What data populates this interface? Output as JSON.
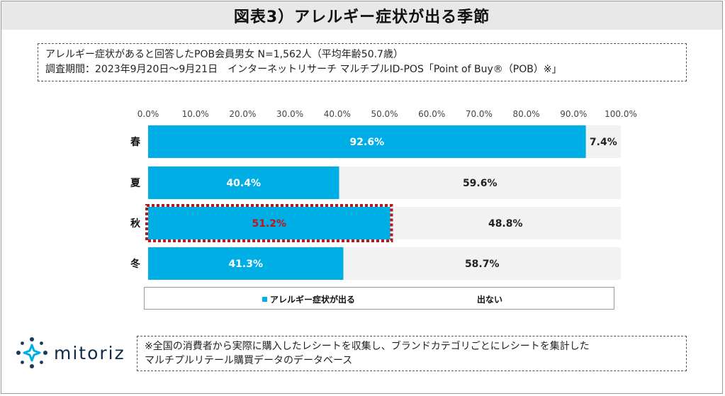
{
  "header": {
    "title": "図表3）アレルギー症状が出る季節"
  },
  "info": {
    "line1": "アレルギー症状があると回答したPOB会員男女 N=1,562人（平均年齢50.7歳）",
    "line2": "調査期間：2023年9月20日～9月21日　インターネットリサーチ マルチプルID-POS「Point of Buy®（POB）※」"
  },
  "chart_data": {
    "type": "bar",
    "orientation": "horizontal",
    "stacked": true,
    "percent_stacked": true,
    "categories": [
      "春",
      "夏",
      "秋",
      "冬"
    ],
    "series": [
      {
        "name": "アレルギー症状が出る",
        "values": [
          92.6,
          40.4,
          51.2,
          41.3
        ],
        "labels": [
          "92.6%",
          "40.4%",
          "51.2%",
          "41.3%"
        ]
      },
      {
        "name": "出ない",
        "values": [
          7.4,
          59.6,
          48.8,
          58.7
        ],
        "labels": [
          "7.4%",
          "59.6%",
          "48.8%",
          "58.7%"
        ]
      }
    ],
    "xlim": [
      0,
      100
    ],
    "ticks": [
      "0.0%",
      "10.0%",
      "20.0%",
      "30.0%",
      "40.0%",
      "50.0%",
      "60.0%",
      "70.0%",
      "80.0%",
      "90.0%",
      "100.0%"
    ],
    "tick_values": [
      0,
      10,
      20,
      30,
      40,
      50,
      60,
      70,
      80,
      90,
      100
    ],
    "axis_position": "top",
    "legend_position": "bottom",
    "grid": false,
    "highlight_category": "秋",
    "colors": {
      "series1": "#00aee6",
      "series2": "#f2f2f2",
      "highlight_border": "#b01c22",
      "highlight_label": "#c0141b"
    }
  },
  "legend": {
    "item1": "アレルギー症状が出る",
    "item2": "出ない"
  },
  "brand": {
    "logo_text": "mitoriz",
    "logo_color": "#0f2a4a",
    "accent_color": "#00aee6"
  },
  "note": {
    "line1": "※全国の消費者から実際に購入したレシートを収集し、ブランドカテゴリごとにレシートを集計した",
    "line2": "マルチプルリテール購買データのデータベース"
  }
}
